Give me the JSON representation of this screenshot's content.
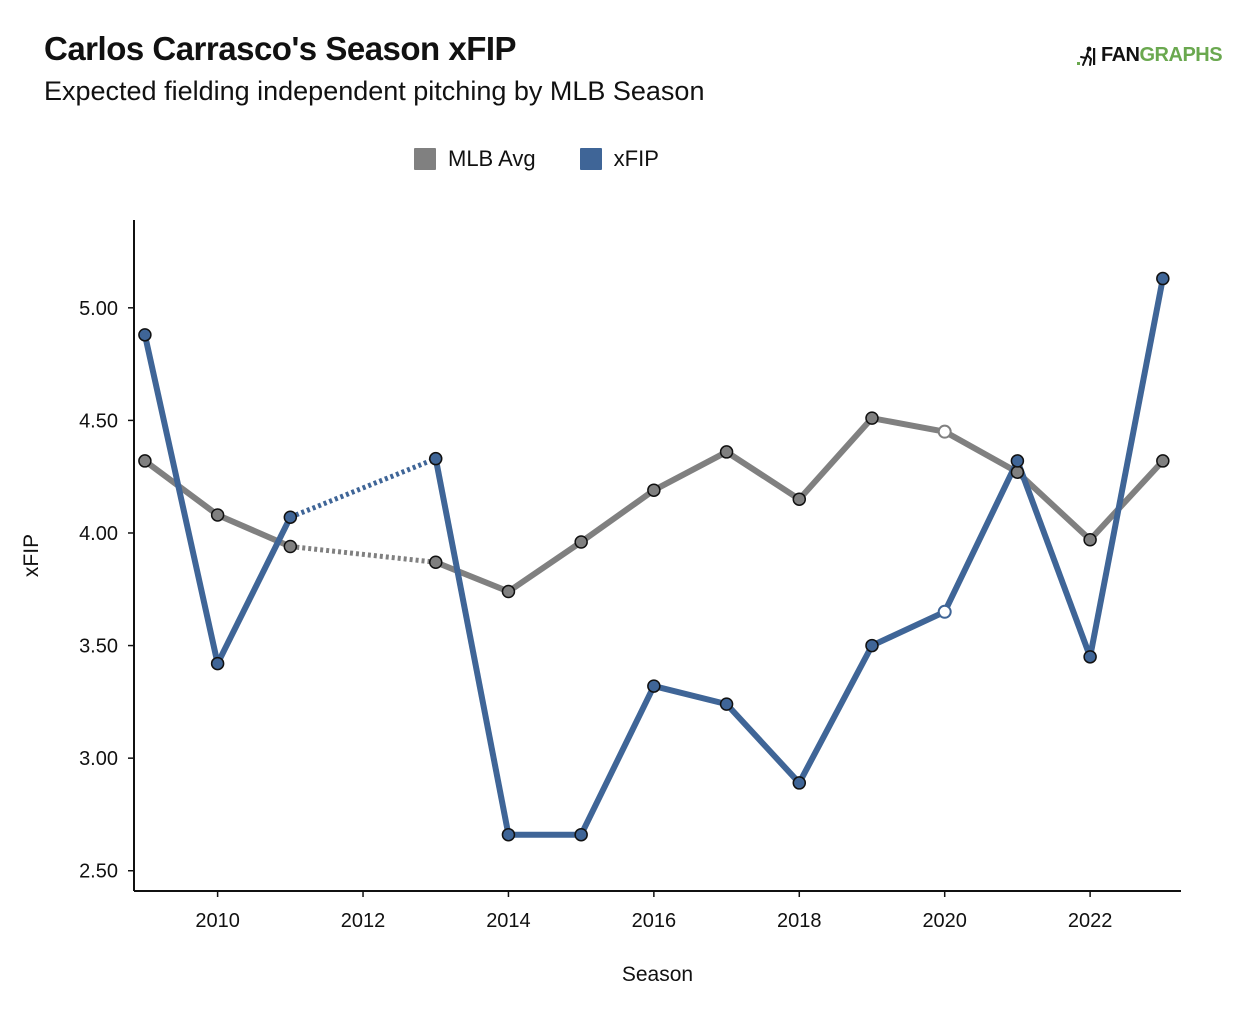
{
  "header": {
    "title": "Carlos Carrasco's Season xFIP",
    "subtitle": "Expected fielding independent pitching by MLB Season"
  },
  "logo": {
    "part1": "FAN",
    "part2": "GRAPHS",
    "colors": {
      "part1": "#111111",
      "part2": "#6aa84f"
    }
  },
  "legend": [
    {
      "label": "MLB Avg",
      "color": "#808080"
    },
    {
      "label": "xFIP",
      "color": "#3f6597"
    }
  ],
  "chart_data": {
    "type": "line",
    "xlabel": "Season",
    "ylabel": "xFIP",
    "xlim": [
      2008.85,
      2023.25
    ],
    "ylim": [
      2.41,
      5.39
    ],
    "x_ticks": [
      2010,
      2012,
      2014,
      2016,
      2018,
      2020,
      2022
    ],
    "y_ticks": [
      2.5,
      3.0,
      3.5,
      4.0,
      4.5,
      5.0
    ],
    "y_tick_labels": [
      "2.50",
      "3.00",
      "3.50",
      "4.00",
      "4.50",
      "5.00"
    ],
    "grid": false,
    "legend_position": "top-center",
    "gap_years": [
      2012
    ],
    "open_marker_years": [
      2020
    ],
    "series": [
      {
        "name": "MLB Avg",
        "color": "#808080",
        "x": [
          2009,
          2010,
          2011,
          2013,
          2014,
          2015,
          2016,
          2017,
          2018,
          2019,
          2020,
          2021,
          2022,
          2023
        ],
        "y": [
          4.32,
          4.08,
          3.94,
          3.87,
          3.74,
          3.96,
          4.19,
          4.36,
          4.15,
          4.51,
          4.45,
          4.27,
          3.97,
          4.32
        ]
      },
      {
        "name": "xFIP",
        "color": "#3f6597",
        "x": [
          2009,
          2010,
          2011,
          2013,
          2014,
          2015,
          2016,
          2017,
          2018,
          2019,
          2020,
          2021,
          2022,
          2023
        ],
        "y": [
          4.88,
          3.42,
          4.07,
          4.33,
          2.66,
          2.66,
          3.32,
          3.24,
          2.89,
          3.5,
          3.65,
          4.32,
          3.45,
          5.13
        ]
      }
    ]
  }
}
